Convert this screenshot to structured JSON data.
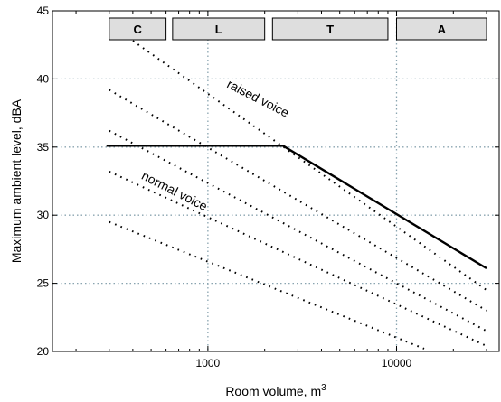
{
  "chart_data": {
    "type": "line",
    "title": "",
    "xlabel": "Room volume, m",
    "xlabel_superscript": "3",
    "ylabel": "Maximum ambient level, dBA",
    "xscale": "log",
    "xlim": [
      150,
      35000
    ],
    "ylim": [
      20,
      45
    ],
    "x_ticks": [
      1000,
      10000
    ],
    "x_tick_labels": [
      "1000",
      "10000"
    ],
    "y_ticks": [
      20,
      25,
      30,
      35,
      40,
      45
    ],
    "y_tick_labels": [
      "20",
      "25",
      "30",
      "35",
      "40",
      "45"
    ],
    "grid": "dotted, at major ticks",
    "bands": [
      {
        "label": "C",
        "x_range": [
          300,
          600
        ]
      },
      {
        "label": "L",
        "x_range": [
          650,
          2000
        ]
      },
      {
        "label": "T",
        "x_range": [
          2200,
          9000
        ]
      },
      {
        "label": "A",
        "x_range": [
          10000,
          30000
        ]
      }
    ],
    "series": [
      {
        "style": "solid",
        "color": "#000000",
        "x": [
          290,
          2500,
          30000
        ],
        "y": [
          35.1,
          35.1,
          26.1
        ]
      },
      {
        "style": "dotted",
        "color": "#000000",
        "x": [
          400,
          30000
        ],
        "y": [
          42.8,
          24.5
        ]
      },
      {
        "style": "dotted",
        "color": "#000000",
        "x": [
          300,
          30000
        ],
        "y": [
          39.2,
          23.0
        ]
      },
      {
        "style": "dotted",
        "color": "#000000",
        "x": [
          300,
          30000
        ],
        "y": [
          36.2,
          21.5
        ]
      },
      {
        "style": "dotted",
        "color": "#000000",
        "x": [
          300,
          30000
        ],
        "y": [
          33.2,
          20.4
        ]
      },
      {
        "style": "dotted",
        "color": "#000000",
        "x": [
          300,
          14000
        ],
        "y": [
          29.5,
          20.2
        ]
      }
    ],
    "annotations": [
      {
        "text": "raised voice",
        "x": 1800,
        "y": 38.3
      },
      {
        "text": "normal voice",
        "x": 650,
        "y": 31.5
      }
    ]
  }
}
